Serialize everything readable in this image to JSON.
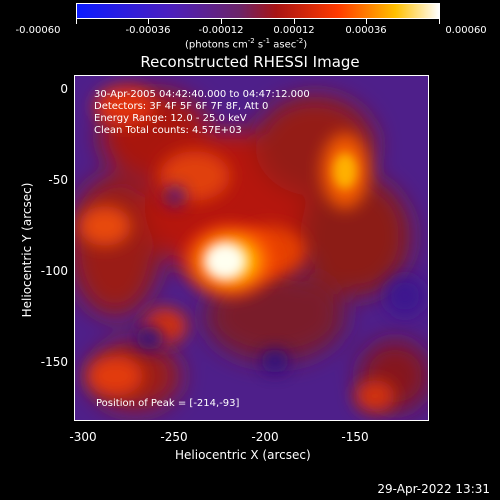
{
  "colorbar": {
    "tick_labels": [
      "-0.00060",
      "-0.00036",
      "-0.00012",
      "0.00012",
      "0.00036",
      "0.00060"
    ],
    "units_text": "(photons cm",
    "units_exp1": "-2",
    "units_mid": " s",
    "units_exp2": "-1",
    "units_end": " asec",
    "units_exp3": "-2",
    "units_close": ")",
    "colors": [
      "#1020ff",
      "#5a1fbf",
      "#6a2a6a",
      "#b81010",
      "#ff4a00",
      "#ffd000",
      "#ffffff"
    ]
  },
  "title": "Reconstructed RHESSI Image",
  "info": {
    "line1": "30-Apr-2005 04:42:40.000 to 04:47:12.000",
    "line2": "Detectors: 3F 4F 5F 6F 7F 8F, Att 0",
    "line3": "Energy Range: 12.0 - 25.0 keV",
    "line4": "Clean     Total counts: 4.57E+03"
  },
  "peak": "Position of Peak = [-214,-93]",
  "axes": {
    "xlabel": "Heliocentric X (arcsec)",
    "ylabel": "Heliocentric Y (arcsec)",
    "x_ticks": [
      "-300",
      "-250",
      "-200",
      "-150"
    ],
    "y_ticks": [
      "0",
      "-50",
      "-100",
      "-150"
    ],
    "xlim": [
      -310,
      -110
    ],
    "ylim": [
      -185,
      8
    ]
  },
  "footer": "29-Apr-2022 13:31",
  "image_summary": {
    "peak_position": [
      -214,
      -93
    ],
    "bright_sources": [
      {
        "x": -214,
        "y": -93,
        "level": 1.0
      },
      {
        "x": -148,
        "y": -43,
        "level": 0.75
      },
      {
        "x": -205,
        "y": -65,
        "level": 0.6
      }
    ]
  }
}
